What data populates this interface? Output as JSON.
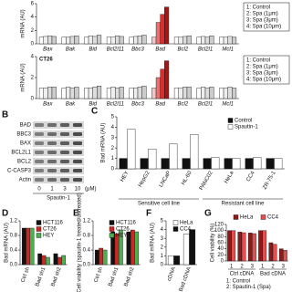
{
  "panel_labels": [
    "B",
    "C",
    "D",
    "E",
    "F",
    "G"
  ],
  "blot": {
    "bands": [
      "BAD",
      "BBC3",
      "BAX",
      "BCL2L1",
      "BCL2",
      "C-CASP3",
      "Actin"
    ],
    "lanes": [
      "0",
      "1",
      "3",
      "10"
    ],
    "unit": "(μM)",
    "treatment": "Spautin-1"
  },
  "chart_data": [
    {
      "type": "bar",
      "ylabel": "mRNA (AU)",
      "categories": [
        "Bax",
        "Bak",
        "Bid",
        "Bcl2l11",
        "Bbc3",
        "Bad",
        "Bcl2",
        "Bcl2l1",
        "Mcl1"
      ],
      "series": [
        {
          "name": "1: Control",
          "color": "#ffffff",
          "values": [
            1,
            1,
            1,
            1,
            1,
            1,
            1,
            1,
            1
          ]
        },
        {
          "name": "2: Spa (1μm)",
          "color": "#eeeeee",
          "values": [
            1.1,
            1,
            1.2,
            1,
            1.1,
            3.2,
            1,
            1.1,
            1
          ]
        },
        {
          "name": "3: Spa (3μm)",
          "color": "#dddddd",
          "values": [
            1.2,
            1.1,
            1.1,
            1.2,
            1.2,
            4.4,
            1.1,
            1,
            1.1
          ]
        },
        {
          "name": "4: Spa (10μm)",
          "color": "#cccccc",
          "values": [
            1.1,
            1.2,
            1.3,
            1.1,
            1.3,
            5.5,
            1.2,
            1.2,
            1
          ]
        }
      ],
      "highlight": {
        "category": "Bad",
        "colors": [
          "#f4c6c6",
          "#e57373",
          "#d32f2f",
          "#a31515"
        ]
      },
      "ylim": [
        0,
        6
      ],
      "yticks": [
        0,
        2,
        4,
        6
      ]
    },
    {
      "type": "bar",
      "label": "CT26",
      "ylabel": "mRNA (AU)",
      "categories": [
        "Bax",
        "Bak",
        "Bid",
        "Bcl2l11",
        "Bbc3",
        "Bad",
        "Bcl2",
        "Bcl2l1",
        "Mcl1"
      ],
      "series": [
        {
          "name": "1: Control",
          "color": "#ffffff",
          "values": [
            1,
            1,
            1,
            1,
            1,
            1,
            1,
            1,
            1
          ]
        },
        {
          "name": "2: Spa (1μm)",
          "color": "#eeeeee",
          "values": [
            1,
            1.1,
            1,
            1.1,
            1,
            2,
            1,
            1.1,
            1
          ]
        },
        {
          "name": "3: Spa (3μm)",
          "color": "#dddddd",
          "values": [
            1.1,
            1,
            1.1,
            1,
            1.1,
            2.8,
            1.1,
            1,
            1.1
          ]
        },
        {
          "name": "4: Spa (10μm)",
          "color": "#cccccc",
          "values": [
            1.1,
            1.1,
            1.2,
            1.1,
            1.2,
            3.6,
            1.1,
            1.1,
            1
          ]
        }
      ],
      "highlight": {
        "category": "Bad",
        "colors": [
          "#f4c6c6",
          "#e57373",
          "#d32f2f",
          "#a31515"
        ]
      },
      "ylim": [
        0,
        4
      ],
      "yticks": [
        0,
        2,
        4
      ]
    },
    {
      "type": "bar",
      "ylabel": "Bad mRNA (AU)",
      "categories": [
        "HEY",
        "HepG2",
        "LNCaP",
        "HL-60",
        "PANC02",
        "HeLa",
        "CC4",
        "ZR-75-1"
      ],
      "series": [
        {
          "name": "Control",
          "color": "#111111",
          "values": [
            1,
            1,
            1,
            1,
            1,
            1,
            1,
            1
          ]
        },
        {
          "name": "Spautin-1",
          "color": "#ffffff",
          "values": [
            3.8,
            1.9,
            2.4,
            3.3,
            1.1,
            1,
            1.1,
            1
          ]
        }
      ],
      "groups": [
        {
          "label": "Sensitive cell line",
          "size": 4
        },
        {
          "label": "Resistant cell line",
          "size": 4
        }
      ],
      "ylim": [
        0,
        5
      ],
      "yticks": [
        0,
        1,
        2,
        3,
        4,
        5
      ]
    },
    {
      "type": "bar",
      "ylabel": "Bad mRNA (AU)",
      "categories": [
        "Ctrl sh",
        "Bad sh1",
        "Bad sh2"
      ],
      "series": [
        {
          "name": "HCT116",
          "color": "#111111",
          "values": [
            1,
            0.3,
            0.3
          ]
        },
        {
          "name": "CT26",
          "color": "#c62828",
          "values": [
            1,
            0.25,
            0.2
          ]
        },
        {
          "name": "HEY",
          "color": "#4caf50",
          "values": [
            1,
            0.2,
            0.25
          ]
        }
      ],
      "ylim": [
        0,
        1.2
      ],
      "yticks": [
        {
          "value": 0,
          "label": "0.0"
        },
        0.4,
        0.8,
        1.2
      ]
    },
    {
      "type": "bar",
      "ylabel": "Cell viability (spautin-1 treated/untreated)",
      "categories": [
        "Ctrl sh",
        "Bad sh1",
        "Bad sh2"
      ],
      "series": [
        {
          "name": "HCT116",
          "color": "#111111",
          "values": [
            0.4,
            0.9,
            0.9
          ]
        },
        {
          "name": "CT26",
          "color": "#c62828",
          "values": [
            0.45,
            0.85,
            0.95
          ]
        },
        {
          "name": "HEY",
          "color": "#4caf50",
          "values": [
            0.4,
            0.95,
            0.9
          ]
        }
      ],
      "ylim": [
        0,
        1.2
      ],
      "yticks": [
        {
          "value": 0,
          "label": "0.0"
        },
        0.4,
        0.8,
        1.2
      ]
    },
    {
      "type": "bar",
      "ylabel": "Bad mRNA (AU)",
      "categories": [
        "cDNA",
        "Bad cDNA"
      ],
      "series": [
        {
          "name": "HeLa",
          "color": "#ffffff",
          "values": [
            1,
            3.5
          ]
        },
        {
          "name": "CC4",
          "color": "#111111",
          "values": [
            1,
            4
          ]
        }
      ],
      "ylim": [
        0,
        5
      ],
      "yticks": [
        0,
        1,
        2,
        3,
        4,
        5
      ]
    },
    {
      "type": "bar",
      "ylabel": "Cell viability (%)",
      "categories": [
        "1",
        "2",
        "3",
        "1",
        "2",
        "3"
      ],
      "series": [
        {
          "name": "HeLa",
          "color": "#8b1a1a",
          "values": [
            100,
            95,
            92,
            100,
            60,
            40
          ]
        },
        {
          "name": "CC4",
          "color": "#e05050",
          "values": [
            100,
            93,
            90,
            100,
            55,
            35
          ]
        }
      ],
      "groups": [
        {
          "label": "Ctrl cDNA",
          "size": 3
        },
        {
          "label": "Bad cDNA",
          "size": 3
        }
      ],
      "notes": [
        "1: Control",
        "2: Spautin-1 (Spa)"
      ],
      "ylim": [
        0,
        120
      ],
      "yticks": [
        0,
        20,
        40,
        60,
        80,
        100,
        120
      ]
    }
  ]
}
